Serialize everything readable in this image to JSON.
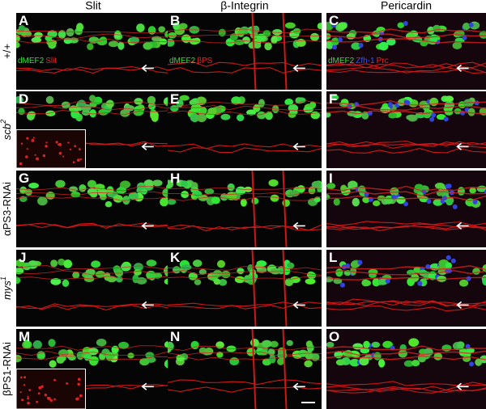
{
  "column_headers": [
    "Slit",
    "β-Integrin",
    "Pericardin"
  ],
  "row_labels": [
    {
      "text": "+/+",
      "italic": false
    },
    {
      "text": "scb",
      "sup": "2",
      "italic": true
    },
    {
      "text": "αPS3-RNAi",
      "italic": false
    },
    {
      "text": "mys",
      "sup": "1",
      "italic": true
    },
    {
      "text": "βPS1-RNAi",
      "italic": false
    }
  ],
  "panels": [
    {
      "letter": "A",
      "stain_labels": [
        {
          "text": "dMEF2",
          "color": "#33dd33"
        },
        {
          "text": "Slit",
          "color": "#ee2222"
        }
      ]
    },
    {
      "letter": "B",
      "stain_labels": [
        {
          "text": "dMEF2",
          "color": "#33dd33"
        },
        {
          "text": "βPS",
          "color": "#ee2222"
        }
      ]
    },
    {
      "letter": "C",
      "stain_labels": [
        {
          "text": "dMEF2",
          "color": "#33dd33"
        },
        {
          "text": "Zfh-1",
          "color": "#3355ff"
        },
        {
          "text": "Prc",
          "color": "#ee2222"
        }
      ]
    },
    {
      "letter": "D"
    },
    {
      "letter": "E"
    },
    {
      "letter": "F"
    },
    {
      "letter": "G"
    },
    {
      "letter": "H"
    },
    {
      "letter": "I"
    },
    {
      "letter": "J"
    },
    {
      "letter": "K"
    },
    {
      "letter": "L"
    },
    {
      "letter": "M"
    },
    {
      "letter": "N"
    },
    {
      "letter": "O"
    }
  ]
}
